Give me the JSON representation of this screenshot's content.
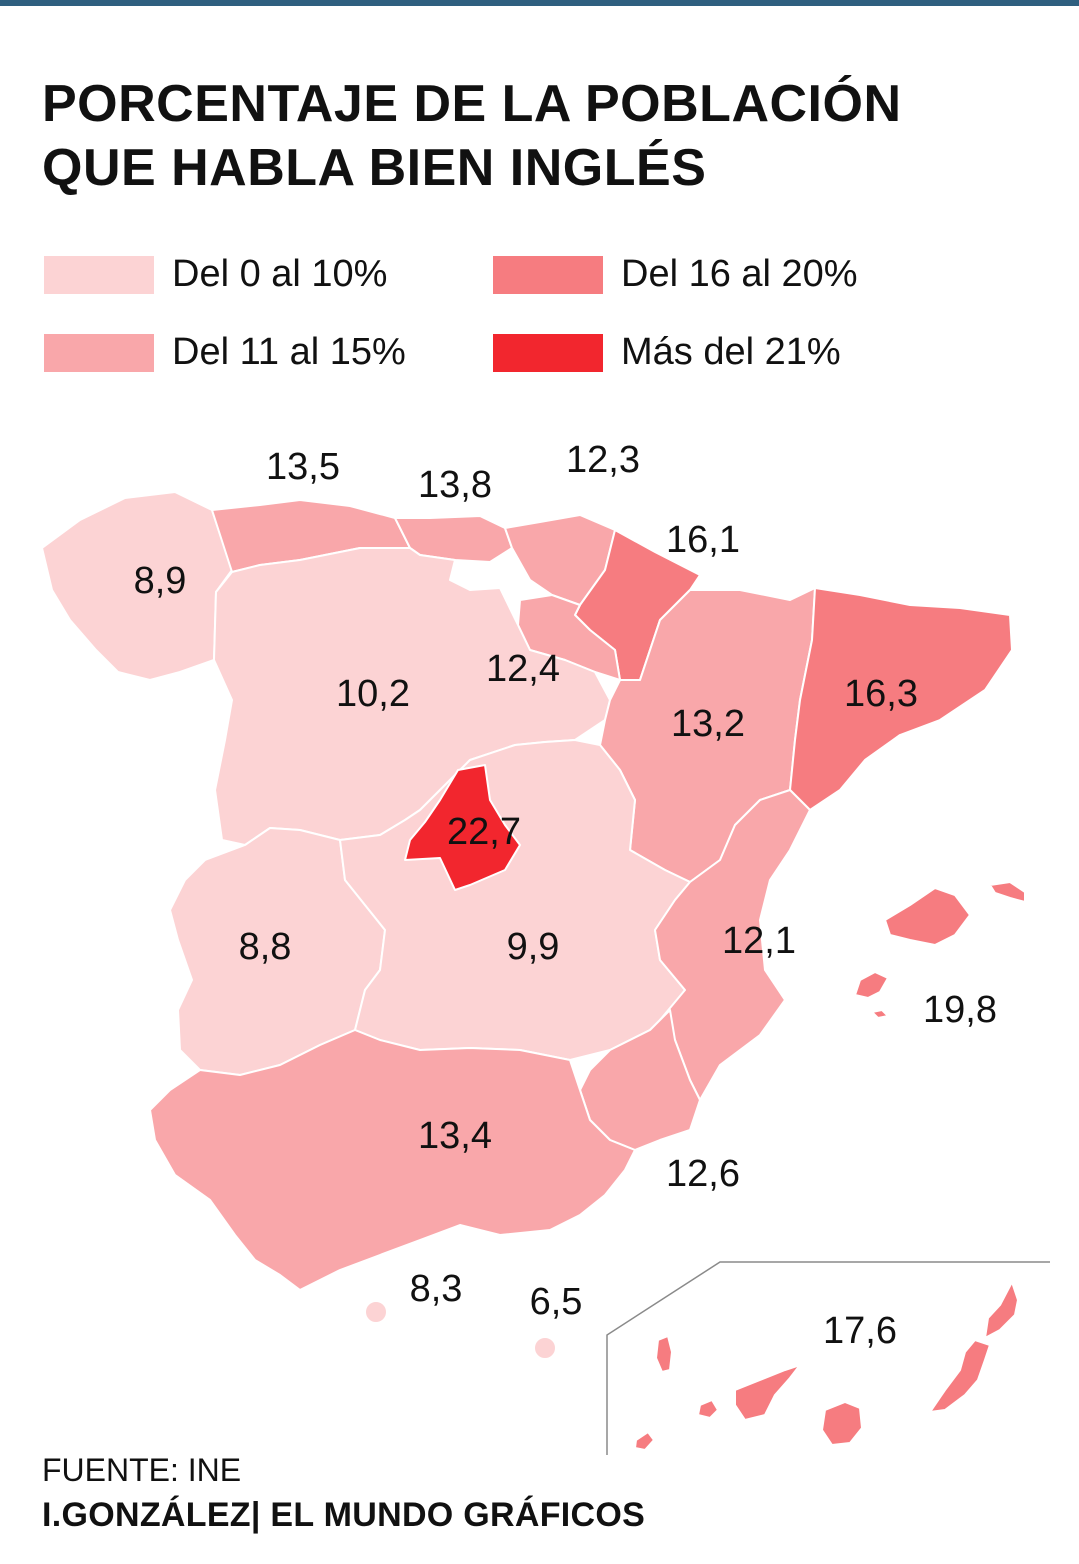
{
  "title": [
    "PORCENTAJE DE LA POBLACIÓN",
    "QUE HABLA BIEN INGLÉS"
  ],
  "legend": [
    {
      "label": "Del 0 al 10%",
      "color": "#fcd3d4"
    },
    {
      "label": "Del 11 al 15%",
      "color": "#f9a7aa"
    },
    {
      "label": "Del 16 al 20%",
      "color": "#f67c80"
    },
    {
      "label": "Más del 21%",
      "color": "#f2262e"
    }
  ],
  "regions": [
    {
      "name": "Galicia",
      "value": "8,9"
    },
    {
      "name": "Asturias",
      "value": "13,5"
    },
    {
      "name": "Cantabria",
      "value": "13,8"
    },
    {
      "name": "País Vasco",
      "value": "12,3"
    },
    {
      "name": "Navarra",
      "value": "16,1"
    },
    {
      "name": "La Rioja",
      "value": "12,4"
    },
    {
      "name": "Castilla y León",
      "value": "10,2"
    },
    {
      "name": "Aragón",
      "value": "13,2"
    },
    {
      "name": "Cataluña",
      "value": "16,3"
    },
    {
      "name": "Madrid",
      "value": "22,7"
    },
    {
      "name": "Extremadura",
      "value": "8,8"
    },
    {
      "name": "Castilla-La Mancha",
      "value": "9,9"
    },
    {
      "name": "Comunidad Valenciana",
      "value": "12,1"
    },
    {
      "name": "Islas Baleares",
      "value": "19,8"
    },
    {
      "name": "Andalucía",
      "value": "13,4"
    },
    {
      "name": "Murcia",
      "value": "12,6"
    },
    {
      "name": "Ceuta",
      "value": "8,3"
    },
    {
      "name": "Melilla",
      "value": "6,5"
    },
    {
      "name": "Canarias",
      "value": "17,6"
    }
  ],
  "footer": {
    "source": "FUENTE: INE",
    "credit": "I.GONZÁLEZ| EL MUNDO GRÁFICOS"
  }
}
